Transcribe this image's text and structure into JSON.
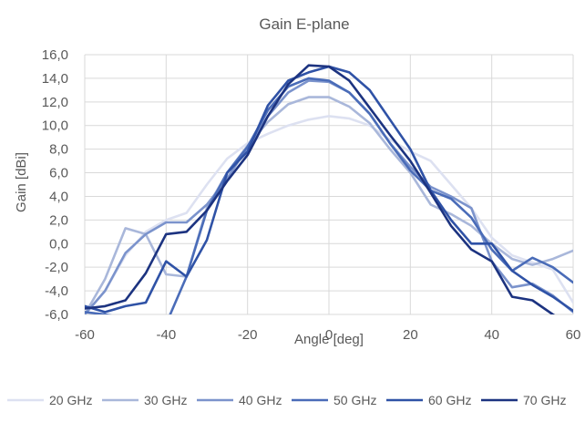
{
  "chart_data": {
    "type": "line",
    "title": "Gain E-plane",
    "xlabel": "Angle [deg]",
    "ylabel": "Gain [dBi]",
    "xlim": [
      -60,
      60
    ],
    "ylim": [
      -6,
      16
    ],
    "xticks": [
      "-60",
      "-40",
      "-20",
      "0",
      "20",
      "40",
      "60"
    ],
    "yticks": [
      "16,0",
      "14,0",
      "12,0",
      "10,0",
      "8,0",
      "6,0",
      "4,0",
      "2,0",
      "0,0",
      "-2,0",
      "-4,0",
      "-6,0"
    ],
    "grid": true,
    "legend_position": "bottom",
    "series": [
      {
        "name": "20 GHz",
        "color": "#dde1f1",
        "x": [
          -60,
          -55,
          -50,
          -45,
          -40,
          -35,
          -30,
          -25,
          -20,
          -15,
          -10,
          -5,
          0,
          5,
          10,
          15,
          20,
          25,
          30,
          35,
          40,
          45,
          50,
          55,
          60
        ],
        "y": [
          -6.0,
          -4.0,
          -1.0,
          1.0,
          2.0,
          2.6,
          5.0,
          7.2,
          8.5,
          9.3,
          10.0,
          10.5,
          10.8,
          10.6,
          10.0,
          8.8,
          7.8,
          7.0,
          5.0,
          3.0,
          0.5,
          -1.0,
          -1.6,
          -2.2,
          -5.0
        ]
      },
      {
        "name": "30 GHz",
        "color": "#a9b7da",
        "x": [
          -60,
          -55,
          -50,
          -45,
          -40,
          -35,
          -30,
          -25,
          -20,
          -15,
          -10,
          -5,
          0,
          5,
          10,
          15,
          20,
          25,
          30,
          35,
          40,
          45,
          50,
          55,
          60
        ],
        "y": [
          -6.0,
          -3.0,
          1.3,
          0.8,
          -2.6,
          -2.8,
          3.0,
          6.0,
          8.3,
          10.3,
          11.8,
          12.4,
          12.4,
          11.6,
          10.2,
          8.0,
          6.0,
          3.3,
          2.5,
          1.5,
          0.0,
          -1.3,
          -1.8,
          -1.3,
          -0.6
        ]
      },
      {
        "name": "40 GHz",
        "color": "#7b93cc",
        "x": [
          -60,
          -55,
          -50,
          -45,
          -40,
          -35,
          -30,
          -25,
          -20,
          -15,
          -10,
          -5,
          0,
          5,
          10,
          15,
          20,
          25,
          30,
          35,
          40,
          45,
          50,
          55,
          60
        ],
        "y": [
          -6.0,
          -4.0,
          -0.8,
          0.8,
          1.8,
          1.8,
          3.3,
          5.5,
          8.2,
          10.8,
          12.8,
          13.8,
          13.7,
          12.8,
          11.0,
          8.5,
          6.5,
          4.8,
          4.0,
          3.0,
          -1.5,
          -3.7,
          -3.4,
          -4.4,
          -5.8
        ]
      },
      {
        "name": "50 GHz",
        "color": "#4a6cb8",
        "x": [
          -60,
          -55,
          -50,
          -45,
          -40,
          -35,
          -30,
          -25,
          -20,
          -15,
          -10,
          -5,
          0,
          5,
          10,
          15,
          20,
          25,
          30,
          35,
          40,
          45,
          50,
          55,
          60
        ],
        "y": [
          -5.8,
          -6.0,
          -6.3,
          -6.5,
          -6.8,
          -2.8,
          2.8,
          6.0,
          8.2,
          11.3,
          13.3,
          14.0,
          13.8,
          12.8,
          11.0,
          8.5,
          6.2,
          4.5,
          3.8,
          2.2,
          -0.5,
          -2.3,
          -1.2,
          -2.0,
          -3.3
        ]
      },
      {
        "name": "60 GHz",
        "color": "#2f52a6",
        "x": [
          -60,
          -55,
          -50,
          -45,
          -40,
          -35,
          -30,
          -25,
          -20,
          -15,
          -10,
          -5,
          0,
          5,
          10,
          15,
          20,
          25,
          30,
          35,
          40,
          45,
          50,
          55,
          60
        ],
        "y": [
          -5.3,
          -5.8,
          -5.3,
          -5.0,
          -1.5,
          -2.8,
          0.3,
          6.0,
          7.8,
          11.7,
          13.8,
          14.5,
          15.0,
          14.5,
          13.0,
          10.5,
          8.0,
          4.5,
          2.0,
          0.0,
          0.0,
          -2.3,
          -3.5,
          -4.5,
          -5.7
        ]
      },
      {
        "name": "70 GHz",
        "color": "#1c3380",
        "x": [
          -60,
          -55,
          -50,
          -45,
          -40,
          -35,
          -30,
          -25,
          -20,
          -15,
          -10,
          -5,
          0,
          5,
          10,
          15,
          20,
          25,
          30,
          35,
          40,
          45,
          50,
          55,
          60
        ],
        "y": [
          -5.5,
          -5.3,
          -4.8,
          -2.5,
          0.8,
          1.0,
          2.8,
          5.3,
          7.5,
          10.8,
          13.5,
          15.1,
          15.0,
          13.8,
          11.5,
          9.2,
          7.0,
          4.3,
          1.5,
          -0.5,
          -1.5,
          -4.5,
          -4.8,
          -6.0,
          -7.0
        ]
      }
    ]
  }
}
